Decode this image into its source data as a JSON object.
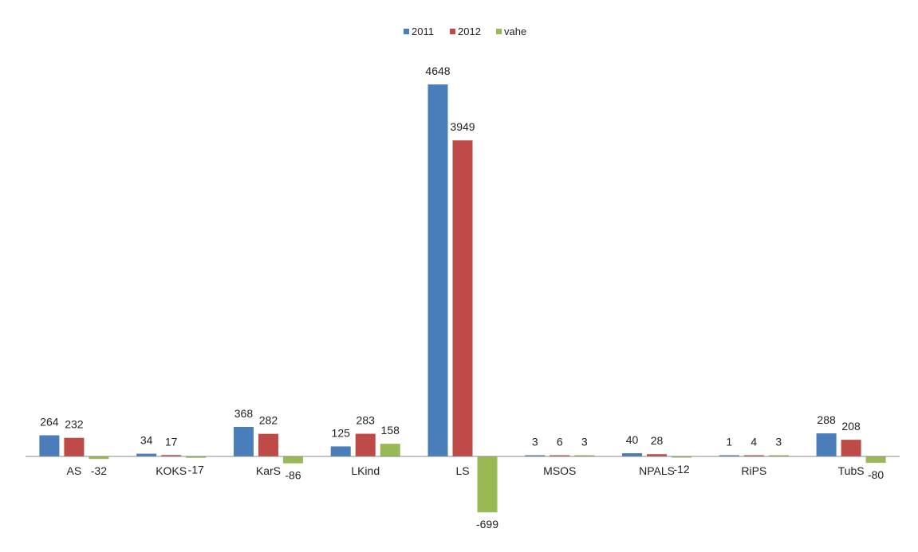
{
  "chart_data": {
    "type": "bar",
    "title": "",
    "xlabel": "",
    "ylabel": "",
    "categories": [
      "AS",
      "KOKS",
      "KarS",
      "LKind",
      "LS",
      "MSOS",
      "NPALS",
      "RiPS",
      "TubS"
    ],
    "series": [
      {
        "name": "2011",
        "values": [
          264,
          34,
          368,
          125,
          4648,
          3,
          40,
          1,
          288
        ],
        "color": "#4a7ebb"
      },
      {
        "name": "2012",
        "values": [
          232,
          17,
          282,
          283,
          3949,
          6,
          28,
          4,
          208
        ],
        "color": "#be4b48"
      },
      {
        "name": "vahe",
        "values": [
          -32,
          -17,
          -86,
          158,
          -699,
          3,
          -12,
          3,
          -80
        ],
        "color": "#98b954"
      }
    ],
    "ylim": [
      -699,
      4648
    ],
    "grid": false,
    "legend": "top-center",
    "data_labels": true
  }
}
